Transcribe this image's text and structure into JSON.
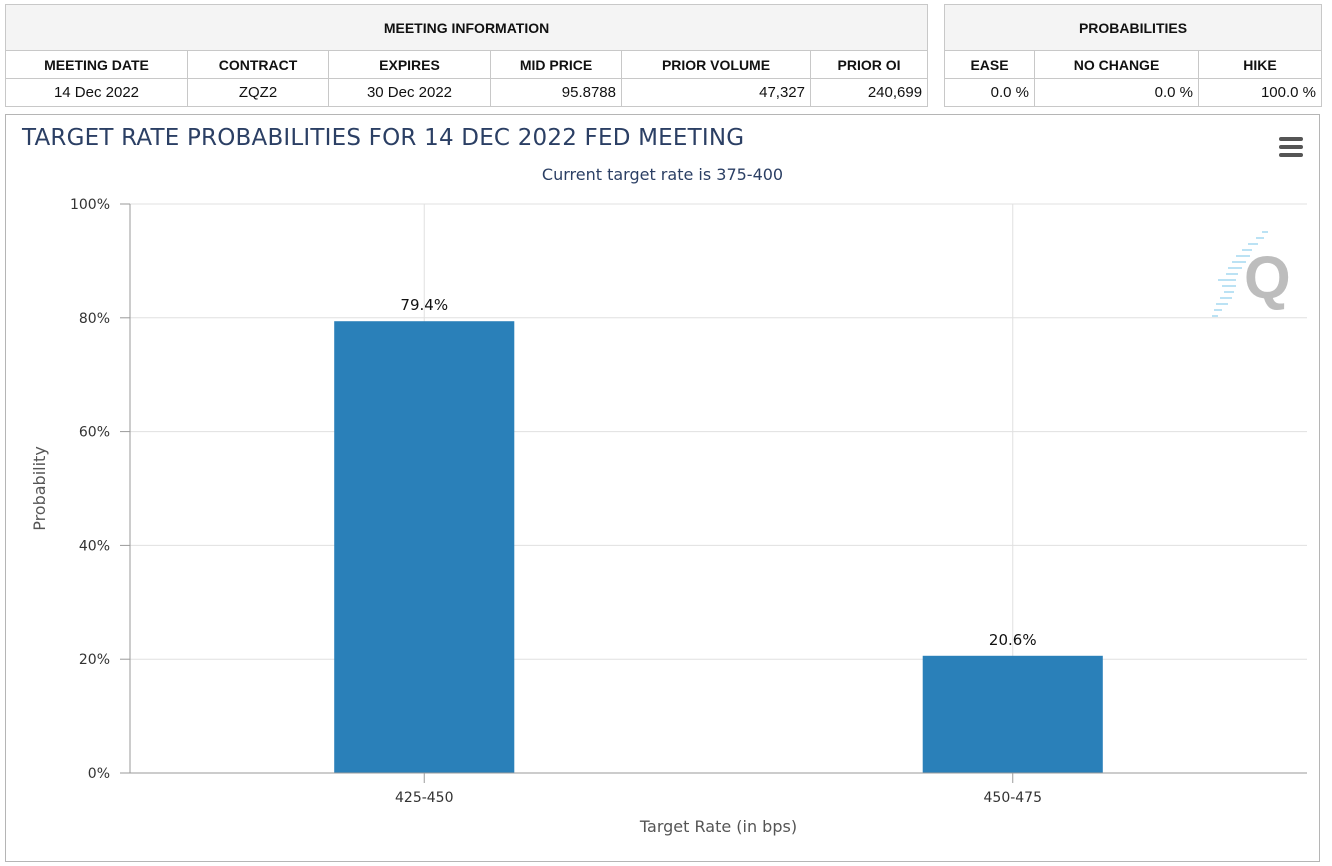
{
  "meeting_info": {
    "group_label": "MEETING INFORMATION",
    "headers": [
      "MEETING DATE",
      "CONTRACT",
      "EXPIRES",
      "MID PRICE",
      "PRIOR VOLUME",
      "PRIOR OI"
    ],
    "row": [
      "14 Dec 2022",
      "ZQZ2",
      "30 Dec 2022",
      "95.8788",
      "47,327",
      "240,699"
    ]
  },
  "probabilities": {
    "group_label": "PROBABILITIES",
    "headers": [
      "EASE",
      "NO CHANGE",
      "HIKE"
    ],
    "row": [
      "0.0 %",
      "0.0 %",
      "100.0 %"
    ]
  },
  "chart": {
    "title": "TARGET RATE PROBABILITIES FOR 14 DEC 2022 FED MEETING",
    "subtitle": "Current target rate is 375-400",
    "menu_icon": "hamburger-menu-icon",
    "watermark_letter": "Q"
  },
  "chart_data": {
    "type": "bar",
    "title": "TARGET RATE PROBABILITIES FOR 14 DEC 2022 FED MEETING",
    "subtitle": "Current target rate is 375-400",
    "categories": [
      "425-450",
      "450-475"
    ],
    "values": [
      79.4,
      20.6
    ],
    "data_labels": [
      "79.4%",
      "20.6%"
    ],
    "xlabel": "Target Rate (in bps)",
    "ylabel": "Probability",
    "ylim": [
      0,
      100
    ],
    "yticks": [
      0,
      20,
      40,
      60,
      80,
      100
    ],
    "ytick_labels": [
      "0%",
      "20%",
      "40%",
      "60%",
      "80%",
      "100%"
    ],
    "grid": true,
    "bar_color": "#2a80b9"
  }
}
